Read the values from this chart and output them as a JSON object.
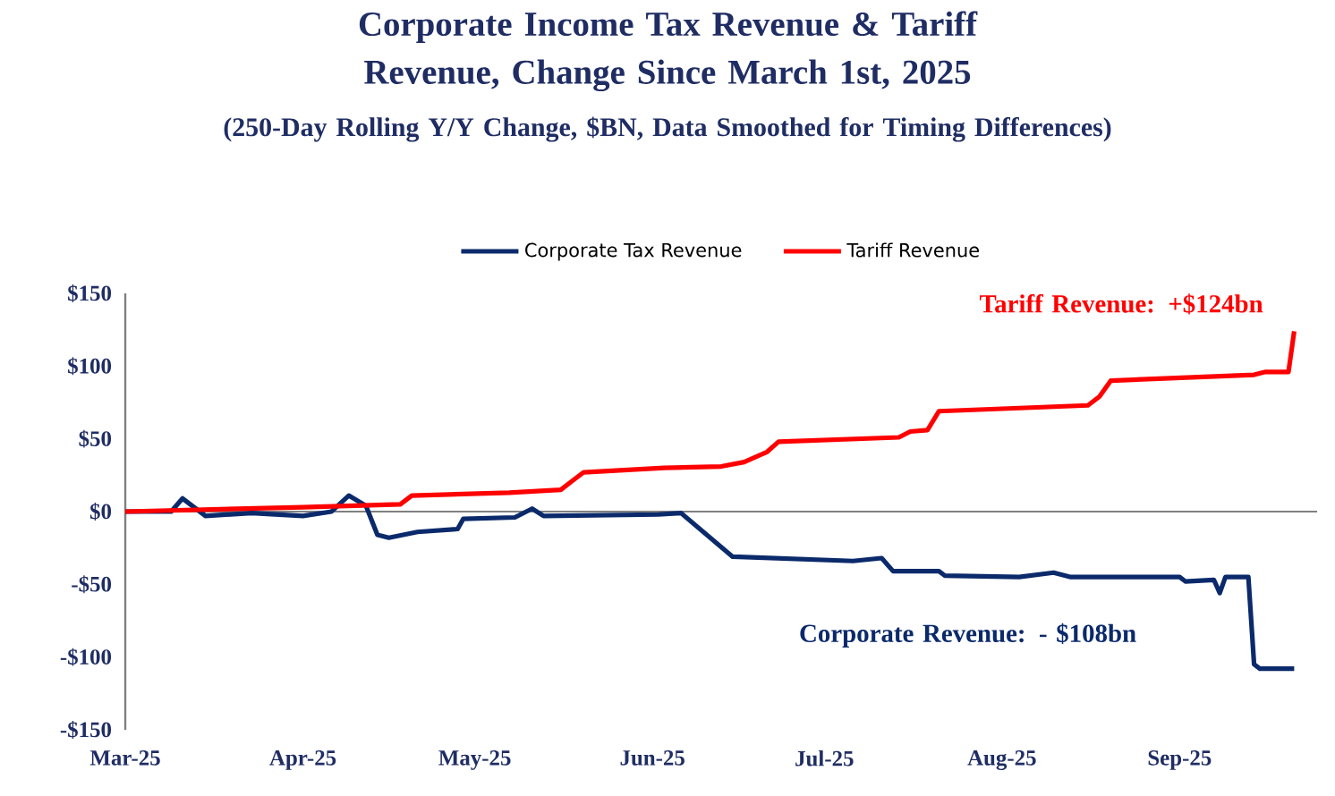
{
  "chart_data": {
    "type": "line",
    "title": "Corporate Income Tax Revenue & Tariff Revenue, Change Since March 1st, 2025",
    "subtitle": "(250-Day Rolling Y/Y Change, $BN, Data Smoothed for Timing Differences)",
    "legend": "top",
    "xlim": [
      "2025-03-01",
      "2025-09-25"
    ],
    "xticks": [
      {
        "value": "2025-03-01",
        "label": "Mar-25"
      },
      {
        "value": "2025-04-01",
        "label": "Apr-25"
      },
      {
        "value": "2025-05-01",
        "label": "May-25"
      },
      {
        "value": "2025-06-01",
        "label": "Jun-25"
      },
      {
        "value": "2025-07-01",
        "label": "Jul-25"
      },
      {
        "value": "2025-08-01",
        "label": "Aug-25"
      },
      {
        "value": "2025-09-01",
        "label": "Sep-25"
      }
    ],
    "ylim": [
      -150,
      150
    ],
    "yticks": [
      {
        "value": -150,
        "label": "-$150"
      },
      {
        "value": -100,
        "label": "-$100"
      },
      {
        "value": -50,
        "label": "-$50"
      },
      {
        "value": 0,
        "label": "$0"
      },
      {
        "value": 50,
        "label": "$50"
      },
      {
        "value": 100,
        "label": "$100"
      },
      {
        "value": 150,
        "label": "$150"
      }
    ],
    "series": [
      {
        "name": "Corporate Tax Revenue",
        "color": "#0b2a6b",
        "x": [
          "2025-03-01",
          "2025-03-09",
          "2025-03-11",
          "2025-03-15",
          "2025-03-23",
          "2025-04-01",
          "2025-04-06",
          "2025-04-09",
          "2025-04-12",
          "2025-04-14",
          "2025-04-16",
          "2025-04-21",
          "2025-04-28",
          "2025-04-29",
          "2025-05-08",
          "2025-05-11",
          "2025-05-13",
          "2025-06-02",
          "2025-06-06",
          "2025-06-15",
          "2025-07-06",
          "2025-07-11",
          "2025-07-13",
          "2025-07-21",
          "2025-07-22",
          "2025-08-04",
          "2025-08-10",
          "2025-08-13",
          "2025-09-01",
          "2025-09-02",
          "2025-09-07",
          "2025-09-08",
          "2025-09-09",
          "2025-09-13",
          "2025-09-14",
          "2025-09-15",
          "2025-09-21"
        ],
        "values": [
          0,
          0,
          9,
          -3,
          -1,
          -3,
          0,
          11,
          4,
          -16,
          -18,
          -14,
          -12,
          -5,
          -4,
          2,
          -3,
          -2,
          -1,
          -31,
          -34,
          -32,
          -41,
          -41,
          -44,
          -45,
          -42,
          -45,
          -45,
          -48,
          -47,
          -56,
          -45,
          -45,
          -105,
          -108,
          -108
        ]
      },
      {
        "name": "Tariff Revenue",
        "color": "#ff0000",
        "x": [
          "2025-03-01",
          "2025-04-01",
          "2025-04-18",
          "2025-04-20",
          "2025-05-07",
          "2025-05-16",
          "2025-05-18",
          "2025-05-20",
          "2025-06-03",
          "2025-06-13",
          "2025-06-17",
          "2025-06-21",
          "2025-06-23",
          "2025-07-14",
          "2025-07-16",
          "2025-07-19",
          "2025-07-21",
          "2025-08-16",
          "2025-08-18",
          "2025-08-20",
          "2025-09-14",
          "2025-09-16",
          "2025-09-20",
          "2025-09-21"
        ],
        "values": [
          0,
          3,
          5,
          11,
          13,
          15,
          21,
          27,
          30,
          31,
          34,
          41,
          48,
          51,
          55,
          56,
          69,
          73,
          79,
          90,
          94,
          96,
          96,
          124
        ]
      }
    ],
    "annotations": [
      "Corporate Revenue: - $108bn",
      "Tariff Revenue: +$124bn"
    ]
  }
}
